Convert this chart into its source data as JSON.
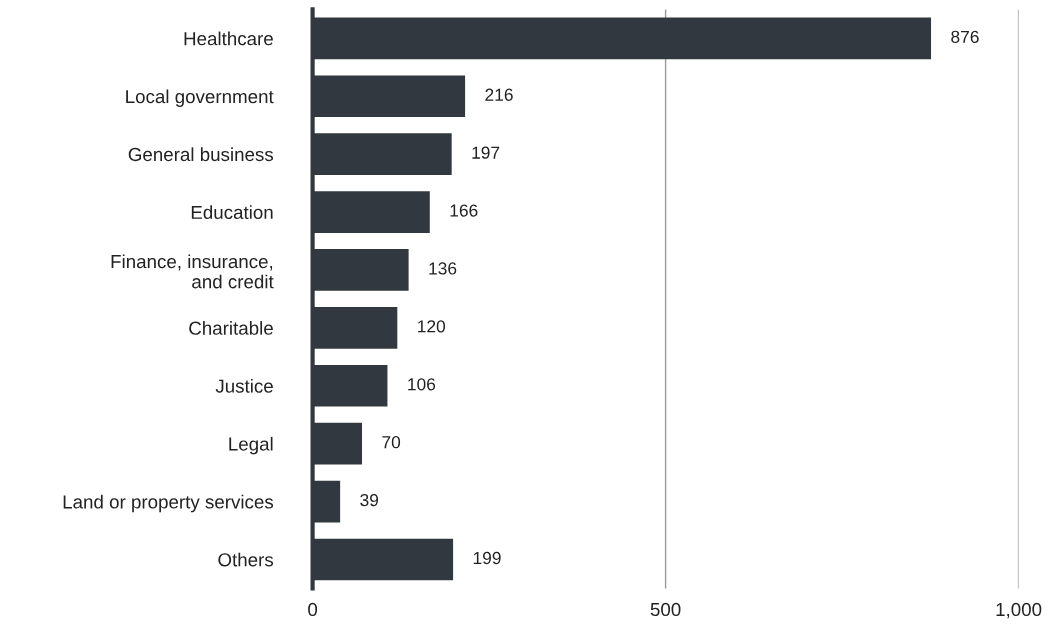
{
  "chart_data": {
    "type": "bar",
    "orientation": "horizontal",
    "categories": [
      "Healthcare",
      "Local government",
      "General business",
      "Education",
      "Finance, insurance,\nand credit",
      "Charitable",
      "Justice",
      "Legal",
      "Land or property services",
      "Others"
    ],
    "values": [
      876,
      216,
      197,
      166,
      136,
      120,
      106,
      70,
      39,
      199
    ],
    "color": "#32383f",
    "xlim": [
      0,
      1000
    ],
    "xticks": [
      0,
      {
        "value": 500,
        "label": "500"
      },
      {
        "value": 1000,
        "label": "1,000"
      }
    ],
    "grid": "x",
    "data_labels": true
  }
}
